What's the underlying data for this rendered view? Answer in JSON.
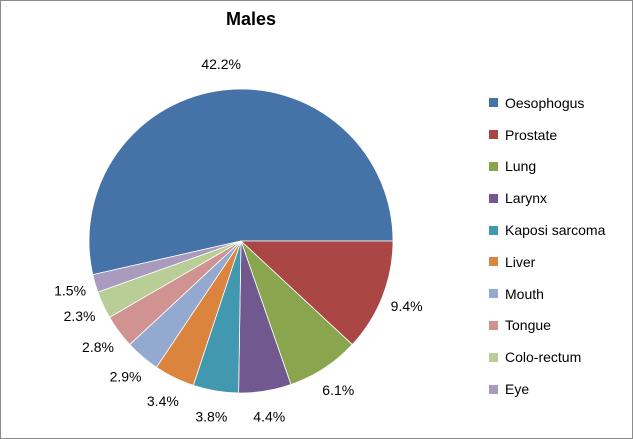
{
  "chart_data": {
    "type": "pie",
    "title": "Males",
    "categories": [
      "Oesophogus",
      "Prostate",
      "Lung",
      "Larynx",
      "Kaposi sarcoma",
      "Liver",
      "Mouth",
      "Tongue",
      "Colo-rectum",
      "Eye"
    ],
    "values": [
      42.2,
      9.4,
      6.1,
      4.4,
      3.8,
      3.4,
      2.9,
      2.8,
      2.3,
      1.5
    ],
    "data_labels": [
      "42.2%",
      "9.4%",
      "6.1%",
      "4.4%",
      "3.8%",
      "3.4%",
      "2.9%",
      "2.8%",
      "2.3%",
      "1.5%"
    ],
    "colors": [
      "#4572A7",
      "#AA4643",
      "#89A54E",
      "#71588F",
      "#4198AF",
      "#DB843D",
      "#93A9CF",
      "#D19392",
      "#B9CD96",
      "#A99BBD"
    ],
    "legend_position": "right"
  }
}
